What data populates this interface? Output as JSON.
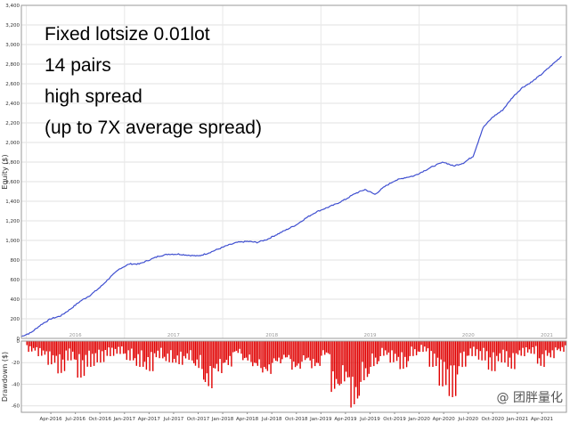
{
  "annotation": {
    "lines": [
      "Fixed lotsize 0.01lot",
      "14 pairs",
      "high spread",
      "(up to 7X average spread)"
    ]
  },
  "watermark": {
    "symbol": "@",
    "text": "团胖量化"
  },
  "chart_data": [
    {
      "type": "line",
      "ylabel": "Equity ($)",
      "ylim": [
        0,
        3400
      ],
      "yticks": [
        0,
        200,
        400,
        600,
        800,
        1000,
        1200,
        1400,
        1600,
        1800,
        2000,
        2200,
        2400,
        2600,
        2800,
        3000,
        3200,
        3400
      ],
      "ytick_labels": [
        "0",
        "200",
        "400",
        "600",
        "800",
        "1,000",
        "1,200",
        "1,400",
        "1,600",
        "1,800",
        "2,000",
        "2,200",
        "2,400",
        "2,600",
        "2,800",
        "3,000",
        "3,200",
        "3,400"
      ],
      "xlim": [
        2015.95,
        2021.5
      ],
      "year_labels": [
        {
          "x": 2016.5,
          "label": "2016"
        },
        {
          "x": 2017.5,
          "label": "2017"
        },
        {
          "x": 2018.5,
          "label": "2018"
        },
        {
          "x": 2019.5,
          "label": "2019"
        },
        {
          "x": 2020.5,
          "label": "2020"
        },
        {
          "x": 2021.3,
          "label": "2021"
        }
      ],
      "grid": true,
      "line_color": "#3f4fd0",
      "series": [
        {
          "x": [
            2015.95,
            2016.05,
            2016.15,
            2016.25,
            2016.35,
            2016.45,
            2016.55,
            2016.65,
            2016.75,
            2016.85,
            2016.95,
            2017.05,
            2017.15,
            2017.25,
            2017.35,
            2017.45,
            2017.55,
            2017.65,
            2017.75,
            2017.85,
            2017.95,
            2018.05,
            2018.15,
            2018.25,
            2018.35,
            2018.45,
            2018.55,
            2018.65,
            2018.75,
            2018.85,
            2018.95,
            2019.05,
            2019.15,
            2019.25,
            2019.35,
            2019.45,
            2019.55,
            2019.65,
            2019.75,
            2019.85,
            2019.95,
            2020.05,
            2020.15,
            2020.25,
            2020.35,
            2020.45,
            2020.55,
            2020.65,
            2020.75,
            2020.85,
            2020.95,
            2021.05,
            2021.15,
            2021.25,
            2021.35,
            2021.45
          ],
          "values": [
            20,
            60,
            140,
            200,
            230,
            300,
            380,
            440,
            520,
            620,
            710,
            760,
            760,
            800,
            840,
            860,
            860,
            850,
            840,
            870,
            910,
            950,
            980,
            990,
            980,
            1010,
            1060,
            1110,
            1160,
            1230,
            1290,
            1330,
            1370,
            1420,
            1480,
            1520,
            1470,
            1550,
            1610,
            1640,
            1660,
            1710,
            1760,
            1800,
            1760,
            1790,
            1860,
            2150,
            2260,
            2330,
            2460,
            2560,
            2620,
            2700,
            2790,
            2880
          ]
        }
      ]
    },
    {
      "type": "bar",
      "ylabel": "Drawdown ($)",
      "ylim": [
        -66,
        0
      ],
      "yticks": [
        0,
        -20,
        -40,
        -60
      ],
      "ytick_labels": [
        "0",
        "-20",
        "-40",
        "-60"
      ],
      "bar_color": "#e00000",
      "x_tick_labels": [
        "Apr-2016",
        "Jul-2016",
        "Oct-2016",
        "Jan-2017",
        "Apr-2017",
        "Jul-2017",
        "Oct-2017",
        "Jan-2018",
        "Apr-2018",
        "Jul-2018",
        "Oct-2018",
        "Jan-2019",
        "Apr-2019",
        "Jul-2019",
        "Oct-2019",
        "Jan-2020",
        "Apr-2020",
        "Jul-2020",
        "Oct-2020",
        "Jan-2021",
        "Apr-2021"
      ],
      "x_tick_positions": [
        2016.25,
        2016.5,
        2016.75,
        2017.0,
        2017.25,
        2017.5,
        2017.75,
        2018.0,
        2018.25,
        2018.5,
        2018.75,
        2019.0,
        2019.25,
        2019.5,
        2019.75,
        2020.0,
        2020.25,
        2020.5,
        2020.75,
        2021.0,
        2021.25
      ],
      "bars": {
        "x": [
          2016.0,
          2016.1,
          2016.2,
          2016.3,
          2016.4,
          2016.5,
          2016.6,
          2016.7,
          2016.8,
          2016.9,
          2017.0,
          2017.1,
          2017.2,
          2017.3,
          2017.4,
          2017.5,
          2017.6,
          2017.7,
          2017.8,
          2017.9,
          2018.0,
          2018.1,
          2018.2,
          2018.3,
          2018.4,
          2018.5,
          2018.6,
          2018.7,
          2018.8,
          2018.9,
          2019.0,
          2019.1,
          2019.2,
          2019.3,
          2019.4,
          2019.5,
          2019.6,
          2019.7,
          2019.8,
          2019.9,
          2020.0,
          2020.1,
          2020.2,
          2020.3,
          2020.4,
          2020.5,
          2020.6,
          2020.7,
          2020.8,
          2020.9,
          2021.0,
          2021.1,
          2021.2,
          2021.3,
          2021.4
        ],
        "values": [
          -10,
          -14,
          -22,
          -30,
          -18,
          -34,
          -24,
          -20,
          -14,
          -12,
          -18,
          -24,
          -28,
          -16,
          -20,
          -22,
          -18,
          -26,
          -44,
          -30,
          -24,
          -12,
          -20,
          -26,
          -32,
          -22,
          -18,
          -28,
          -20,
          -26,
          -14,
          -48,
          -40,
          -62,
          -38,
          -24,
          -14,
          -20,
          -26,
          -14,
          -10,
          -24,
          -42,
          -52,
          -24,
          -14,
          -18,
          -28,
          -20,
          -26,
          -14,
          -12,
          -24,
          -16,
          -10
        ]
      }
    }
  ]
}
